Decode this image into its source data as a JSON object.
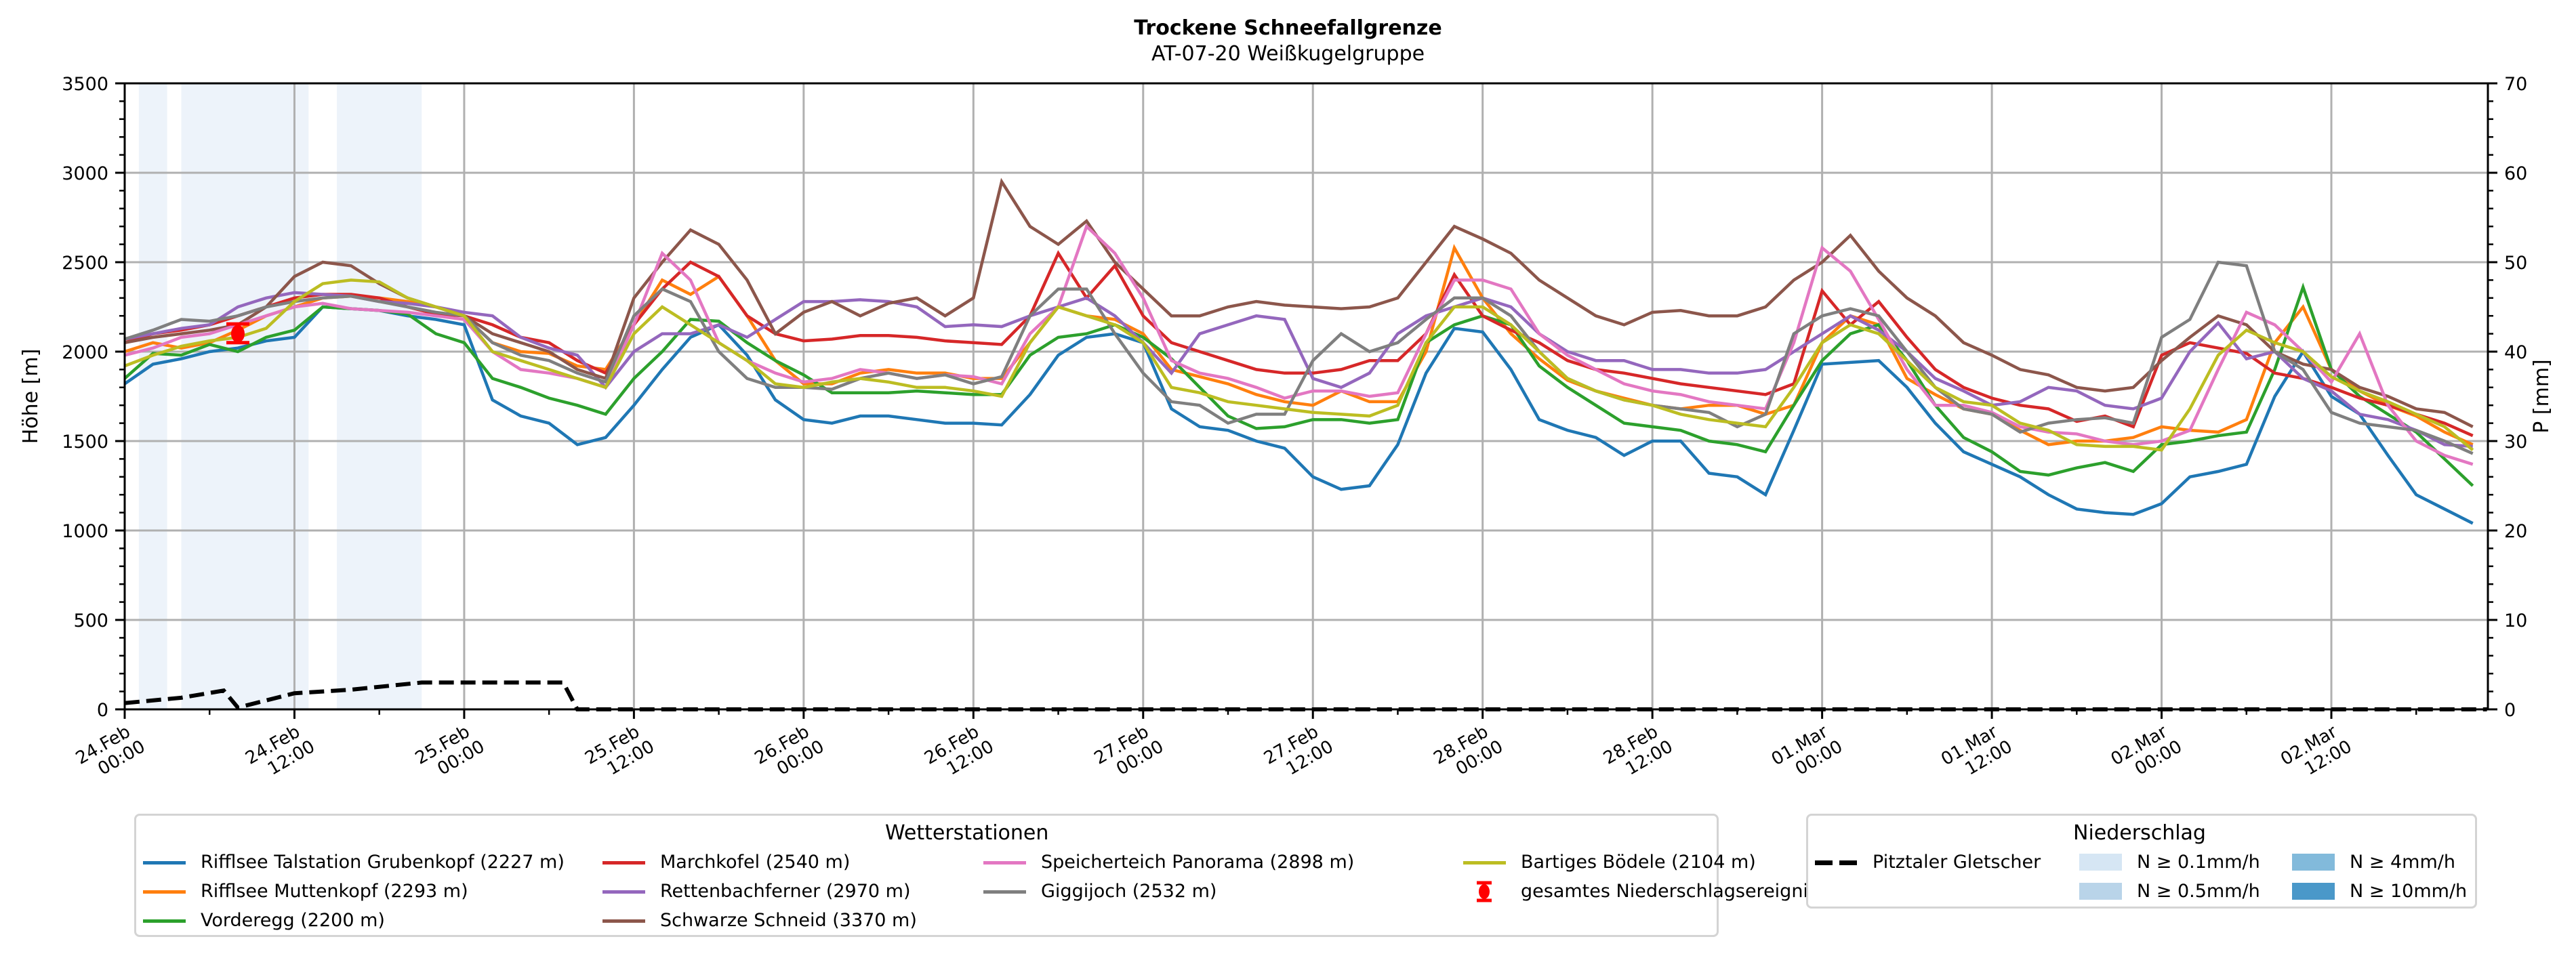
{
  "header": {
    "title": "Trockene Schneefallgrenze",
    "subtitle": "AT-07-20 Weißkugelgruppe"
  },
  "chart_data": {
    "type": "line",
    "title": "Trockene Schneefallgrenze",
    "subtitle": "AT-07-20 Weißkugelgruppe",
    "ylabel": "Höhe [m]",
    "y2label": "P [mm]",
    "ylim": [
      0,
      3500
    ],
    "y2lim": [
      0,
      70
    ],
    "yticks": [
      "0",
      "500",
      "1000",
      "1500",
      "2000",
      "2500",
      "3000",
      "3500"
    ],
    "y2ticks": [
      "0",
      "10",
      "20",
      "30",
      "40",
      "50",
      "60",
      "70"
    ],
    "x_unit": "hours since 24.Feb 00:00",
    "xlim": [
      0,
      167
    ],
    "xticks": [
      {
        "h": 0,
        "line1": "24.Feb",
        "line2": "00:00"
      },
      {
        "h": 12,
        "line1": "24.Feb",
        "line2": "12:00"
      },
      {
        "h": 24,
        "line1": "25.Feb",
        "line2": "00:00"
      },
      {
        "h": 36,
        "line1": "25.Feb",
        "line2": "12:00"
      },
      {
        "h": 48,
        "line1": "26.Feb",
        "line2": "00:00"
      },
      {
        "h": 60,
        "line1": "26.Feb",
        "line2": "12:00"
      },
      {
        "h": 72,
        "line1": "27.Feb",
        "line2": "00:00"
      },
      {
        "h": 84,
        "line1": "27.Feb",
        "line2": "12:00"
      },
      {
        "h": 96,
        "line1": "28.Feb",
        "line2": "00:00"
      },
      {
        "h": 108,
        "line1": "28.Feb",
        "line2": "12:00"
      },
      {
        "h": 120,
        "line1": "01.Mar",
        "line2": "00:00"
      },
      {
        "h": 132,
        "line1": "01.Mar",
        "line2": "12:00"
      },
      {
        "h": 144,
        "line1": "02.Mar",
        "line2": "00:00"
      },
      {
        "h": 156,
        "line1": "02.Mar",
        "line2": "12:00"
      }
    ],
    "grid": true,
    "x_step_hours": 2,
    "series": [
      {
        "name": "Rifflsee Talstation Grubenkopf (2227 m)",
        "color": "#1f77b4",
        "values": [
          1820,
          1930,
          1960,
          2000,
          2020,
          2060,
          2080,
          2250,
          2240,
          2230,
          2200,
          2180,
          2150,
          1730,
          1640,
          1600,
          1480,
          1520,
          1700,
          1900,
          2080,
          2150,
          1980,
          1730,
          1620,
          1600,
          1640,
          1640,
          1620,
          1600,
          1600,
          1590,
          1760,
          1980,
          2080,
          2100,
          2050,
          1680,
          1580,
          1560,
          1500,
          1460,
          1300,
          1230,
          1250,
          1480,
          1880,
          2130,
          2110,
          1900,
          1620,
          1560,
          1520,
          1420,
          1500,
          1500,
          1320,
          1300,
          1200,
          1560,
          1930,
          1940,
          1950,
          1800,
          1600,
          1440,
          1370,
          1300,
          1200,
          1120,
          1100,
          1090,
          1150,
          1300,
          1330,
          1370,
          1750,
          2000,
          1750,
          1650,
          1420,
          1200,
          1120,
          1040
        ]
      },
      {
        "name": "Rifflsee Muttenkopf (2293 m)",
        "color": "#ff7f0e",
        "values": [
          2000,
          2050,
          2020,
          2050,
          2120,
          2200,
          2250,
          2300,
          2310,
          2300,
          2280,
          2250,
          2200,
          2050,
          2000,
          1990,
          1920,
          1900,
          2150,
          2400,
          2320,
          2420,
          2200,
          1950,
          1820,
          1820,
          1880,
          1900,
          1880,
          1880,
          1850,
          1850,
          2050,
          2250,
          2200,
          2180,
          2100,
          1900,
          1860,
          1820,
          1760,
          1720,
          1700,
          1780,
          1720,
          1720,
          2000,
          2580,
          2300,
          2100,
          1960,
          1840,
          1780,
          1740,
          1700,
          1680,
          1700,
          1700,
          1650,
          1700,
          2050,
          2200,
          2150,
          1850,
          1760,
          1680,
          1650,
          1560,
          1480,
          1500,
          1500,
          1520,
          1580,
          1560,
          1550,
          1620,
          2050,
          2250,
          1900,
          1780,
          1700,
          1640,
          1550,
          1480
        ]
      },
      {
        "name": "Vorderegg (2200 m)",
        "color": "#2ca02c",
        "values": [
          1850,
          1990,
          1980,
          2040,
          2000,
          2080,
          2120,
          2250,
          2240,
          2230,
          2210,
          2100,
          2050,
          1850,
          1800,
          1740,
          1700,
          1650,
          1850,
          2000,
          2180,
          2170,
          2050,
          1950,
          1870,
          1770,
          1770,
          1770,
          1780,
          1770,
          1760,
          1760,
          1980,
          2080,
          2100,
          2150,
          2080,
          1960,
          1800,
          1640,
          1570,
          1580,
          1620,
          1620,
          1600,
          1620,
          2050,
          2150,
          2200,
          2150,
          1920,
          1800,
          1700,
          1600,
          1580,
          1560,
          1500,
          1480,
          1440,
          1700,
          1950,
          2100,
          2150,
          1950,
          1700,
          1520,
          1440,
          1330,
          1310,
          1350,
          1380,
          1330,
          1480,
          1500,
          1530,
          1550,
          1900,
          2360,
          1900,
          1750,
          1650,
          1550,
          1400,
          1250
        ]
      },
      {
        "name": "Marchkofel (2540 m)",
        "color": "#d62728",
        "values": [
          2050,
          2100,
          2120,
          2150,
          2200,
          2250,
          2300,
          2320,
          2320,
          2300,
          2250,
          2210,
          2200,
          2150,
          2080,
          2050,
          1950,
          1880,
          2150,
          2350,
          2500,
          2420,
          2200,
          2100,
          2060,
          2070,
          2090,
          2090,
          2080,
          2060,
          2050,
          2040,
          2200,
          2550,
          2300,
          2480,
          2200,
          2050,
          2000,
          1950,
          1900,
          1880,
          1880,
          1900,
          1950,
          1950,
          2100,
          2430,
          2200,
          2120,
          2050,
          1950,
          1900,
          1880,
          1850,
          1820,
          1800,
          1780,
          1760,
          1820,
          2340,
          2150,
          2280,
          2080,
          1900,
          1800,
          1740,
          1700,
          1680,
          1610,
          1640,
          1580,
          1980,
          2050,
          2020,
          1990,
          1880,
          1850,
          1800,
          1740,
          1700,
          1650,
          1600,
          1530
        ]
      },
      {
        "name": "Rettenbachferner (2970 m)",
        "color": "#9467bd",
        "values": [
          2070,
          2100,
          2130,
          2150,
          2250,
          2300,
          2330,
          2320,
          2310,
          2280,
          2270,
          2250,
          2220,
          2200,
          2080,
          2020,
          1980,
          1800,
          2000,
          2100,
          2100,
          2150,
          2080,
          2180,
          2280,
          2280,
          2290,
          2280,
          2250,
          2140,
          2150,
          2140,
          2200,
          2250,
          2300,
          2200,
          2050,
          1880,
          2100,
          2150,
          2200,
          2180,
          1850,
          1800,
          1880,
          2100,
          2200,
          2250,
          2300,
          2250,
          2100,
          2000,
          1950,
          1950,
          1900,
          1900,
          1880,
          1880,
          1900,
          2000,
          2100,
          2200,
          2120,
          2000,
          1850,
          1780,
          1700,
          1720,
          1800,
          1780,
          1700,
          1680,
          1740,
          2000,
          2160,
          1960,
          2000,
          1850,
          1780,
          1650,
          1620,
          1560,
          1480,
          1470
        ]
      },
      {
        "name": "Schwarze Schneid (3370 m)",
        "color": "#8c564b",
        "values": [
          2050,
          2080,
          2100,
          2120,
          2150,
          2250,
          2420,
          2500,
          2480,
          2380,
          2300,
          2250,
          2200,
          2100,
          2050,
          2000,
          1900,
          1850,
          2300,
          2500,
          2680,
          2600,
          2400,
          2100,
          2220,
          2280,
          2200,
          2270,
          2300,
          2200,
          2300,
          2950,
          2700,
          2600,
          2730,
          2500,
          2350,
          2200,
          2200,
          2250,
          2280,
          2260,
          2250,
          2240,
          2250,
          2300,
          2500,
          2700,
          2630,
          2550,
          2400,
          2300,
          2200,
          2150,
          2220,
          2230,
          2200,
          2200,
          2250,
          2400,
          2500,
          2650,
          2450,
          2300,
          2200,
          2050,
          1980,
          1900,
          1870,
          1800,
          1780,
          1800,
          1950,
          2080,
          2200,
          2150,
          2000,
          1930,
          1900,
          1800,
          1750,
          1680,
          1660,
          1580
        ]
      },
      {
        "name": "Speicherteich Panorama (2898 m)",
        "color": "#e377c2",
        "values": [
          1980,
          2020,
          2080,
          2100,
          2150,
          2200,
          2250,
          2270,
          2240,
          2230,
          2220,
          2200,
          2180,
          2000,
          1900,
          1880,
          1850,
          1800,
          2150,
          2550,
          2400,
          2050,
          1950,
          1880,
          1830,
          1850,
          1900,
          1880,
          1850,
          1870,
          1860,
          1820,
          2100,
          2250,
          2700,
          2550,
          2300,
          1950,
          1880,
          1850,
          1800,
          1740,
          1780,
          1780,
          1750,
          1770,
          2100,
          2400,
          2400,
          2350,
          2100,
          1980,
          1900,
          1820,
          1780,
          1760,
          1720,
          1700,
          1680,
          2050,
          2580,
          2450,
          2180,
          1900,
          1700,
          1700,
          1660,
          1580,
          1550,
          1540,
          1500,
          1480,
          1500,
          1560,
          1900,
          2220,
          2150,
          2000,
          1830,
          2100,
          1700,
          1500,
          1420,
          1370
        ]
      },
      {
        "name": "Giggijoch (2532 m)",
        "color": "#7f7f7f",
        "values": [
          2070,
          2120,
          2180,
          2170,
          2200,
          2250,
          2280,
          2300,
          2310,
          2280,
          2250,
          2220,
          2200,
          2050,
          1980,
          1950,
          1880,
          1830,
          2200,
          2350,
          2280,
          2000,
          1850,
          1800,
          1800,
          1790,
          1850,
          1880,
          1850,
          1870,
          1820,
          1860,
          2200,
          2350,
          2350,
          2100,
          1880,
          1720,
          1700,
          1600,
          1650,
          1650,
          1950,
          2100,
          2000,
          2050,
          2180,
          2300,
          2300,
          2200,
          2000,
          1850,
          1780,
          1730,
          1700,
          1680,
          1660,
          1580,
          1650,
          2100,
          2200,
          2240,
          2200,
          2000,
          1800,
          1680,
          1650,
          1550,
          1600,
          1620,
          1630,
          1600,
          2080,
          2180,
          2500,
          2480,
          2000,
          1900,
          1660,
          1600,
          1580,
          1560,
          1500,
          1430
        ]
      },
      {
        "name": "Bartiges Bödele (2104 m)",
        "color": "#bcbd22",
        "values": [
          1920,
          1980,
          2030,
          2060,
          2080,
          2130,
          2280,
          2380,
          2400,
          2390,
          2300,
          2250,
          2200,
          2000,
          1950,
          1900,
          1850,
          1800,
          2100,
          2250,
          2150,
          2050,
          1950,
          1820,
          1800,
          1830,
          1850,
          1830,
          1800,
          1800,
          1780,
          1750,
          2050,
          2250,
          2200,
          2150,
          2050,
          1800,
          1770,
          1720,
          1700,
          1680,
          1660,
          1650,
          1640,
          1700,
          2050,
          2250,
          2250,
          2150,
          2000,
          1850,
          1780,
          1730,
          1700,
          1650,
          1620,
          1600,
          1580,
          1800,
          2050,
          2150,
          2100,
          1950,
          1800,
          1720,
          1700,
          1600,
          1560,
          1480,
          1470,
          1470,
          1450,
          1680,
          1980,
          2120,
          2050,
          2000,
          1860,
          1780,
          1720,
          1650,
          1580,
          1450
        ]
      }
    ],
    "pitztaler": {
      "name": "Pitztaler Gletscher",
      "axis": "P [mm]",
      "points": [
        [
          0,
          0.7
        ],
        [
          4,
          1.3
        ],
        [
          7,
          2.1
        ],
        [
          8,
          0.2
        ],
        [
          12,
          1.8
        ],
        [
          16,
          2.2
        ],
        [
          21,
          3.0
        ],
        [
          31,
          3.0
        ],
        [
          32,
          0.0
        ],
        [
          167,
          0.0
        ]
      ]
    },
    "precip_bands": [
      {
        "start_h": 1,
        "end_h": 3,
        "level": "N ≥ 0.1mm/h"
      },
      {
        "start_h": 4,
        "end_h": 13,
        "level": "N ≥ 0.1mm/h"
      },
      {
        "start_h": 15,
        "end_h": 21,
        "level": "N ≥ 0.1mm/h"
      }
    ],
    "event_marker": {
      "label": "gesamtes Niederschlagsereignis",
      "h": 8,
      "value": 2100,
      "err_low": 2050,
      "err_high": 2155,
      "color": "#ff0000"
    }
  },
  "legend_stations": {
    "title": "Wetterstationen",
    "event_label": "gesamtes Niederschlagsereignis"
  },
  "legend_precip": {
    "title": "Niederschlag",
    "line_label": "Pitztaler Gletscher",
    "levels": [
      {
        "label": "N ≥ 0.1mm/h",
        "color": "#d6e6f4"
      },
      {
        "label": "N ≥ 0.5mm/h",
        "color": "#b9d4e9"
      },
      {
        "label": "N ≥ 4mm/h",
        "color": "#82badb"
      },
      {
        "label": "N ≥ 10mm/h",
        "color": "#4a98c9"
      }
    ]
  },
  "colors": {
    "band": "#edf3fa",
    "grid": "#b0b0b0",
    "axis": "#000000"
  }
}
